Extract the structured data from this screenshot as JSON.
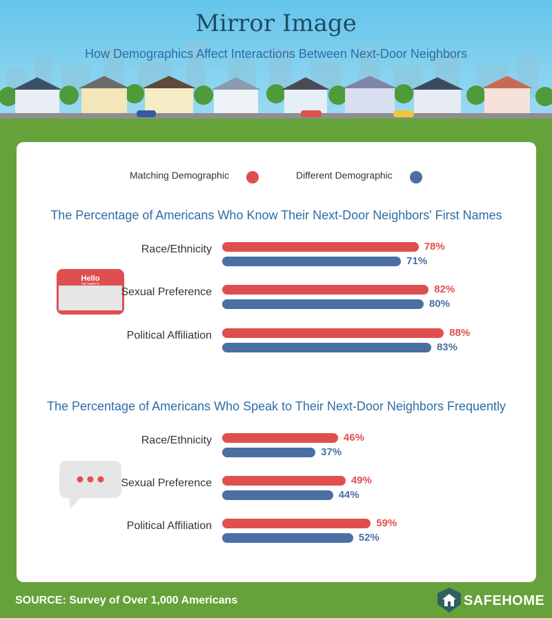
{
  "header": {
    "title": "Mirror Image",
    "subtitle": "How Demographics Affect Interactions Between Next-Door Neighbors"
  },
  "legend": {
    "matching": "Matching Demographic",
    "different": "Different Demographic"
  },
  "colors": {
    "matching": "#e04f4f",
    "different": "#4a6fa3",
    "sky": "#64c4ea",
    "grass": "#66a23a"
  },
  "icons": {
    "section1": "hello-name-tag-icon",
    "section2": "speech-bubble-icon"
  },
  "name_tag": {
    "hello": "Hello",
    "my_name_is": "my name is"
  },
  "chart_data": [
    {
      "type": "bar",
      "title": "The Percentage of Americans Who Know Their Next-Door Neighbors' First Names",
      "categories": [
        "Race/Ethnicity",
        "Sexual Preference",
        "Political Affiliation"
      ],
      "series": [
        {
          "name": "Matching Demographic",
          "values": [
            78,
            82,
            88
          ]
        },
        {
          "name": "Different Demographic",
          "values": [
            71,
            80,
            83
          ]
        }
      ],
      "value_labels": [
        [
          "78%",
          "82%",
          "88%"
        ],
        [
          "71%",
          "80%",
          "83%"
        ]
      ],
      "ylim": [
        0,
        100
      ],
      "orientation": "horizontal"
    },
    {
      "type": "bar",
      "title": "The Percentage of Americans Who Speak to Their Next-Door Neighbors Frequently",
      "categories": [
        "Race/Ethnicity",
        "Sexual Preference",
        "Political Affiliation"
      ],
      "series": [
        {
          "name": "Matching Demographic",
          "values": [
            46,
            49,
            59
          ]
        },
        {
          "name": "Different Demographic",
          "values": [
            37,
            44,
            52
          ]
        }
      ],
      "value_labels": [
        [
          "46%",
          "49%",
          "59%"
        ],
        [
          "37%",
          "44%",
          "52%"
        ]
      ],
      "ylim": [
        0,
        100
      ],
      "orientation": "horizontal"
    }
  ],
  "footer": {
    "source": "SOURCE: Survey of Over 1,000 Americans",
    "brand": "SAFEHOME"
  }
}
